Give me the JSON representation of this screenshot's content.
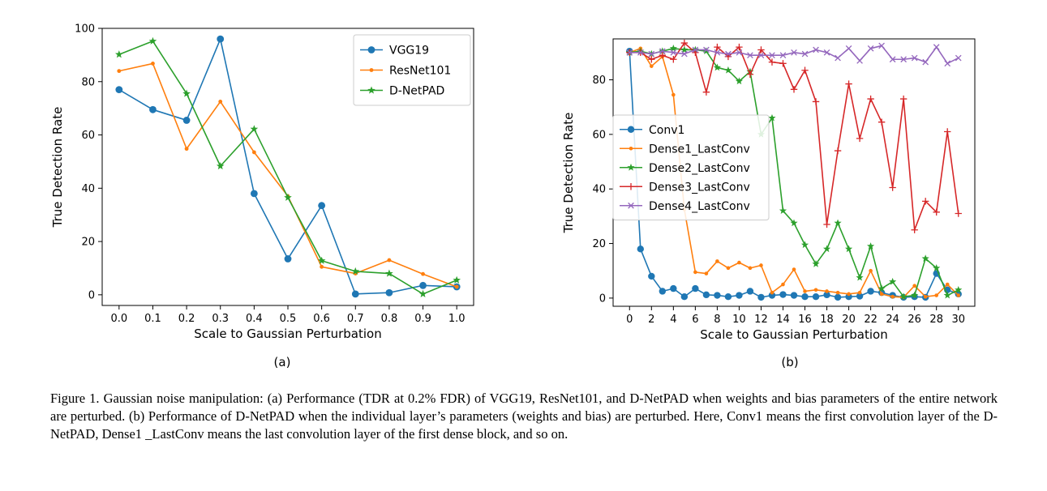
{
  "chart_data": [
    {
      "panel": "a",
      "type": "line",
      "xlabel": "Scale to Gaussian Perturbation",
      "ylabel": "True Detection Rate",
      "xlim": [
        -0.05,
        1.05
      ],
      "ylim": [
        -4,
        100
      ],
      "xticks": [
        0.0,
        0.1,
        0.2,
        0.3,
        0.4,
        0.5,
        0.6,
        0.7,
        0.8,
        0.9,
        1.0
      ],
      "xtick_labels": [
        "0.0",
        "0.1",
        "0.2",
        "0.3",
        "0.4",
        "0.5",
        "0.6",
        "0.7",
        "0.8",
        "0.9",
        "1.0"
      ],
      "yticks": [
        0,
        20,
        40,
        60,
        80,
        100
      ],
      "ytick_labels": [
        "0",
        "20",
        "40",
        "60",
        "80",
        "100"
      ],
      "grid": false,
      "legend_position": "top-right",
      "x": [
        0.0,
        0.1,
        0.2,
        0.3,
        0.4,
        0.5,
        0.6,
        0.7,
        0.8,
        0.9,
        1.0
      ],
      "series": [
        {
          "name": "VGG19",
          "color": "#1f77b4",
          "marker": "circle",
          "values": [
            77,
            69.5,
            65.5,
            96,
            38,
            13.5,
            33.5,
            0.3,
            0.8,
            3.5,
            3
          ]
        },
        {
          "name": "ResNet101",
          "color": "#ff7f0e",
          "marker": "dot",
          "values": [
            84,
            86.8,
            54.8,
            72.5,
            53.5,
            37,
            10.5,
            8,
            13,
            7.8,
            3
          ]
        },
        {
          "name": "D-NetPAD",
          "color": "#2ca02c",
          "marker": "star",
          "values": [
            90.2,
            95.2,
            75.5,
            48.3,
            62.2,
            36.5,
            12.8,
            8.8,
            8,
            0.3,
            5.5
          ]
        }
      ]
    },
    {
      "panel": "b",
      "type": "line",
      "xlabel": "Scale to Gaussian Perturbation",
      "ylabel": "True Detection Rate",
      "xlim": [
        -1.5,
        31.5
      ],
      "ylim": [
        -3,
        95
      ],
      "xticks": [
        0,
        2,
        4,
        6,
        8,
        10,
        12,
        14,
        16,
        18,
        20,
        22,
        24,
        26,
        28,
        30
      ],
      "xtick_labels": [
        "0",
        "2",
        "4",
        "6",
        "8",
        "10",
        "12",
        "14",
        "16",
        "18",
        "20",
        "22",
        "24",
        "26",
        "28",
        "30"
      ],
      "yticks": [
        0,
        20,
        40,
        60,
        80
      ],
      "ytick_labels": [
        "0",
        "20",
        "40",
        "60",
        "80"
      ],
      "grid": false,
      "legend_position": "center-left",
      "x": [
        0,
        1,
        2,
        3,
        4,
        5,
        6,
        7,
        8,
        9,
        10,
        11,
        12,
        13,
        14,
        15,
        16,
        17,
        18,
        19,
        20,
        21,
        22,
        23,
        24,
        25,
        26,
        27,
        28,
        29,
        30
      ],
      "series": [
        {
          "name": "Conv1",
          "color": "#1f77b4",
          "marker": "circle",
          "values": [
            90.5,
            18,
            8,
            2.5,
            3.5,
            0.5,
            3.5,
            1.2,
            1,
            0.5,
            1,
            2.5,
            0.3,
            1,
            1.3,
            1,
            0.5,
            0.5,
            1.2,
            0.3,
            0.5,
            0.7,
            2.5,
            2,
            1,
            0.3,
            0.5,
            0.3,
            9,
            3,
            1.5
          ]
        },
        {
          "name": "Dense1_LastConv",
          "color": "#ff7f0e",
          "marker": "dot",
          "values": [
            90,
            91.5,
            85,
            88.5,
            74.5,
            32.5,
            9.5,
            9,
            13.5,
            11,
            13,
            11,
            12,
            2,
            5,
            10.5,
            2.5,
            3,
            2.5,
            2,
            1.5,
            2,
            10,
            1.5,
            0.5,
            0.3,
            4.5,
            0.5,
            1,
            5,
            1
          ]
        },
        {
          "name": "Dense2_LastConv",
          "color": "#2ca02c",
          "marker": "star",
          "values": [
            90,
            90.5,
            89.5,
            90.5,
            91.5,
            91,
            91,
            90.5,
            84.5,
            83.5,
            79.5,
            83,
            60,
            66,
            32,
            27.5,
            19.5,
            12.5,
            18,
            27.5,
            18,
            7.5,
            19,
            3.5,
            6,
            0.5,
            1,
            14.5,
            11,
            1,
            3
          ]
        },
        {
          "name": "Dense3_LastConv",
          "color": "#d62728",
          "marker": "plus",
          "values": [
            90,
            90,
            87.5,
            89,
            87.5,
            93.5,
            90,
            75.5,
            92,
            88.5,
            92,
            82,
            91,
            86.5,
            86,
            76.5,
            83.5,
            72,
            27,
            54,
            78.5,
            58.5,
            73,
            64.5,
            40.5,
            73,
            25,
            35.5,
            31.5,
            61,
            31
          ]
        },
        {
          "name": "Dense4_LastConv",
          "color": "#9467bd",
          "marker": "x",
          "values": [
            90,
            90,
            89.5,
            90.5,
            90,
            89.5,
            91,
            91,
            90,
            89.5,
            90,
            89,
            89,
            89,
            89,
            90,
            89.5,
            91,
            90,
            88,
            91.5,
            87,
            91.5,
            92.5,
            87.5,
            87.5,
            88,
            86.5,
            92,
            86,
            88
          ]
        }
      ]
    }
  ],
  "subcaptions": {
    "a": "(a)",
    "b": "(b)"
  },
  "caption": "Figure 1. Gaussian noise manipulation: (a) Performance (TDR at 0.2% FDR) of VGG19, ResNet101, and D-NetPAD when weights and bias parameters of the entire network are perturbed. (b) Performance of D-NetPAD when the individual layer’s parameters (weights and bias) are perturbed. Here, Conv1 means the first convolution layer of the D-NetPAD, Dense1 _LastConv means the last convolution layer of the first dense block, and so on."
}
